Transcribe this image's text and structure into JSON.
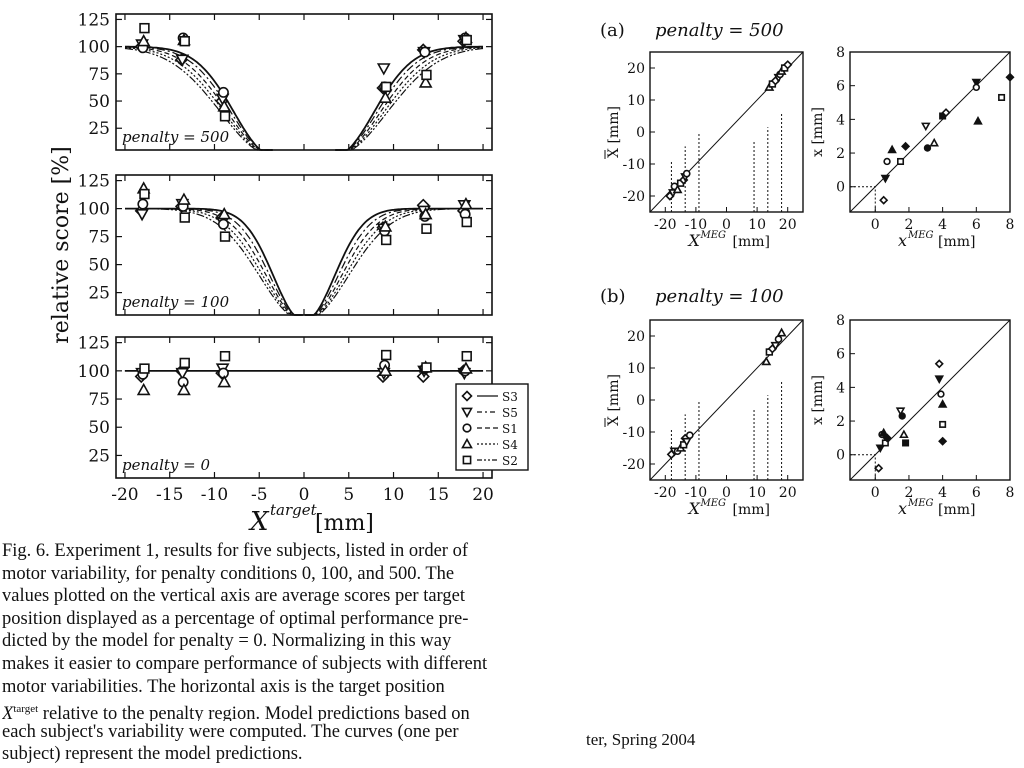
{
  "figure": {
    "left_ylabel": "relative score [%]",
    "left_xlabel_main": "X",
    "left_xlabel_sup": "target",
    "left_xlabel_unit": "[mm]",
    "left_panel_labels": [
      "penalty = 500",
      "penalty = 100",
      "penalty = 0"
    ],
    "left_yticks": [
      "125",
      "100",
      "75",
      "50",
      "25"
    ],
    "left_xticks": [
      "-20",
      "-15",
      "-10",
      "-5",
      "0",
      "5",
      "10",
      "15",
      "20"
    ],
    "legend": [
      {
        "marker": "diamond",
        "label": "S3",
        "style": "solid"
      },
      {
        "marker": "triangle-down",
        "label": "S5",
        "style": "dashdot"
      },
      {
        "marker": "circle",
        "label": "S1",
        "style": "dashed"
      },
      {
        "marker": "triangle-up",
        "label": "S4",
        "style": "dotted"
      },
      {
        "marker": "square",
        "label": "S2",
        "style": "dashdotdot"
      }
    ],
    "row_a_label": "(a)",
    "row_a_title": "penalty = 500",
    "row_b_label": "(b)",
    "row_b_title": "penalty = 100",
    "big_ylabel": "X [mm]",
    "big_xlabel_main": "X",
    "big_xlabel_sup": "MEG",
    "big_xlabel_unit": "[mm]",
    "small_ylabel": "x [mm]",
    "small_xlabel_main": "x",
    "small_xlabel_sup": "MEG",
    "small_xlabel_unit": "[mm]",
    "big_ticks": [
      "-20",
      "-10",
      "0",
      "10",
      "20"
    ],
    "big_xticks": [
      "-20",
      "-10",
      "0",
      "10",
      "20"
    ],
    "small_yticks": [
      "8",
      "6",
      "4",
      "2",
      "0"
    ],
    "small_xticks": [
      "0",
      "2",
      "4",
      "6",
      "8"
    ]
  },
  "chart_data": [
    {
      "type": "scatter",
      "panel": "penalty = 500",
      "series": [
        {
          "name": "S3",
          "x": [
            -18,
            -13.5,
            -9,
            9,
            13.5,
            18
          ],
          "y": [
            100,
            88,
            50,
            62,
            97,
            105
          ]
        },
        {
          "name": "S5",
          "x": [
            -18,
            -13.5,
            -9,
            9,
            13.5,
            18
          ],
          "y": [
            102,
            88,
            52,
            80,
            95,
            106
          ]
        },
        {
          "name": "S1",
          "x": [
            -18,
            -13.5,
            -9,
            9,
            13.5,
            18
          ],
          "y": [
            99,
            108,
            58,
            63,
            95,
            108
          ]
        },
        {
          "name": "S4",
          "x": [
            -18,
            -13.5,
            -9,
            9,
            13.5,
            18
          ],
          "y": [
            105,
            106,
            45,
            53,
            67,
            108
          ]
        },
        {
          "name": "S2",
          "x": [
            -18,
            -13.5,
            -9,
            9,
            13.5,
            18
          ],
          "y": [
            117,
            105,
            36,
            63,
            74,
            106
          ]
        }
      ],
      "ylim": [
        0,
        125
      ],
      "xlim": [
        -20,
        20
      ]
    },
    {
      "type": "scatter",
      "panel": "penalty = 100",
      "series": [
        {
          "name": "S3",
          "x": [
            -18,
            -13.5,
            -9,
            9,
            13.5,
            18
          ],
          "y": [
            98,
            102,
            92,
            83,
            103,
            98
          ]
        },
        {
          "name": "S5",
          "x": [
            -18,
            -13.5,
            -9,
            9,
            13.5,
            18
          ],
          "y": [
            95,
            104,
            88,
            82,
            98,
            103
          ]
        },
        {
          "name": "S1",
          "x": [
            -18,
            -13.5,
            -9,
            9,
            13.5,
            18
          ],
          "y": [
            104,
            102,
            86,
            80,
            93,
            95
          ]
        },
        {
          "name": "S4",
          "x": [
            -18,
            -13.5,
            -9,
            9,
            13.5,
            18
          ],
          "y": [
            118,
            108,
            95,
            84,
            95,
            104
          ]
        },
        {
          "name": "S2",
          "x": [
            -18,
            -13.5,
            -9,
            9,
            13.5,
            18
          ],
          "y": [
            113,
            92,
            75,
            72,
            82,
            88
          ]
        }
      ],
      "ylim": [
        0,
        125
      ],
      "xlim": [
        -20,
        20
      ]
    },
    {
      "type": "scatter",
      "panel": "penalty = 0",
      "series": [
        {
          "name": "S3",
          "x": [
            -18,
            -13.5,
            -9,
            9,
            13.5,
            18
          ],
          "y": [
            95,
            100,
            98,
            95,
            95,
            100
          ]
        },
        {
          "name": "S5",
          "x": [
            -18,
            -13.5,
            -9,
            9,
            13.5,
            18
          ],
          "y": [
            98,
            98,
            102,
            98,
            100,
            98
          ]
        },
        {
          "name": "S1",
          "x": [
            -18,
            -13.5,
            -9,
            9,
            13.5,
            18
          ],
          "y": [
            97,
            90,
            98,
            105,
            102,
            100
          ]
        },
        {
          "name": "S4",
          "x": [
            -18,
            -13.5,
            -9,
            9,
            13.5,
            18
          ],
          "y": [
            83,
            83,
            90,
            100,
            103,
            102
          ]
        },
        {
          "name": "S2",
          "x": [
            -18,
            -13.5,
            -9,
            9,
            13.5,
            18
          ],
          "y": [
            102,
            107,
            113,
            114,
            103,
            113
          ]
        }
      ],
      "ylim": [
        0,
        125
      ],
      "xlim": [
        -20,
        20
      ]
    },
    {
      "type": "scatter",
      "panel": "(a) penalty = 500, X",
      "x": [
        -18.5,
        -17.5,
        -17,
        -16,
        -15,
        -14,
        -13.5,
        -13,
        14,
        15,
        16,
        17,
        17.5,
        18,
        19,
        20
      ],
      "y": [
        -20,
        -19,
        -17,
        -18,
        -16,
        -15,
        -14,
        -13,
        14,
        15,
        16,
        17,
        18,
        19,
        20,
        21
      ],
      "xlim": [
        -25,
        25
      ],
      "ylim": [
        -25,
        25
      ]
    },
    {
      "type": "scatter",
      "panel": "(a) penalty = 500, x",
      "x": [
        0.5,
        0.6,
        0.7,
        1.0,
        1.5,
        1.8,
        3.0,
        3.1,
        3.5,
        4.0,
        4.2,
        6.0,
        6.0,
        6.1,
        7.5,
        8.0
      ],
      "y": [
        -0.8,
        0.5,
        1.5,
        2.2,
        1.5,
        2.4,
        3.6,
        2.3,
        2.6,
        4.2,
        4.4,
        6.2,
        5.9,
        3.9,
        5.3,
        6.5
      ],
      "xlim": [
        -1.5,
        8
      ],
      "ylim": [
        -1.5,
        8
      ]
    },
    {
      "type": "scatter",
      "panel": "(b) penalty = 100, X",
      "x": [
        -18,
        -17,
        -16,
        -15,
        -14,
        -13.5,
        -13,
        -12,
        13,
        14,
        15,
        16,
        17,
        18
      ],
      "y": [
        -17,
        -16,
        -16,
        -15,
        -14,
        -12,
        -13,
        -11,
        12,
        15,
        16,
        17,
        19,
        21
      ],
      "xlim": [
        -25,
        25
      ],
      "ylim": [
        -25,
        25
      ]
    },
    {
      "type": "scatter",
      "panel": "(b) penalty = 100, x",
      "x": [
        0.2,
        0.3,
        0.4,
        0.5,
        0.6,
        0.7,
        1.5,
        1.6,
        1.7,
        1.8,
        3.8,
        3.8,
        3.9,
        4.0,
        4.0,
        4.0
      ],
      "y": [
        -0.8,
        0.4,
        1.2,
        1.3,
        0.7,
        1.0,
        2.6,
        2.3,
        1.2,
        0.7,
        5.4,
        4.5,
        3.6,
        3.0,
        1.8,
        0.8
      ],
      "xlim": [
        -1.5,
        8
      ],
      "ylim": [
        -1.5,
        8
      ]
    }
  ],
  "caption": {
    "lines": [
      "Fig. 6.   Experiment 1, results for five subjects, listed in order of",
      "motor variability, for penalty conditions 0, 100, and 500.   The",
      "values plotted on the vertical axis are average scores per target",
      "position displayed as a percentage of optimal performance pre-",
      "dicted by the model for penalty = 0.   Normalizing in this way",
      "makes it easier to compare performance of subjects with different",
      "motor variabilities.   The horizontal axis is the target position",
      "X",
      "each subject's variability were computed.   The curves (one per",
      "subject) represent the model predictions."
    ],
    "line8_sup": "target",
    "line8_rest": " relative to the penalty region.   Model predictions based on"
  },
  "footer": "ter, Spring 2004"
}
